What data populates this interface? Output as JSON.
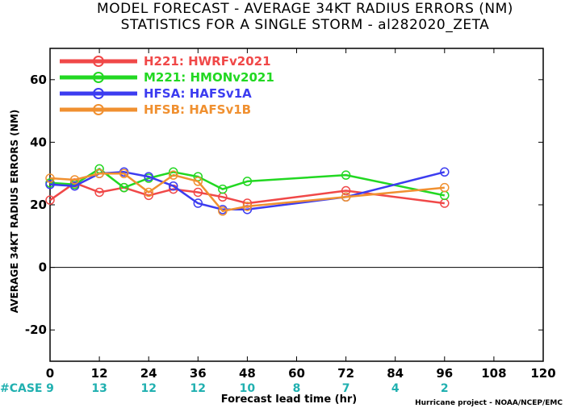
{
  "chart_data": {
    "type": "line",
    "title": "MODEL FORECAST - AVERAGE 34KT RADIUS ERRORS (NM)",
    "subtitle": "STATISTICS FOR A SINGLE STORM - al282020_ZETA",
    "xlabel": "Forecast lead time (hr)",
    "ylabel": "AVERAGE 34KT RADIUS ERRORS (NM)",
    "xlim": [
      0,
      120
    ],
    "ylim": [
      -30,
      70
    ],
    "xticks": [
      0,
      12,
      24,
      36,
      48,
      60,
      72,
      84,
      96,
      108,
      120
    ],
    "yticks": [
      -20,
      0,
      20,
      40,
      60
    ],
    "xtick_labels": [
      "0",
      "12",
      "24",
      "36",
      "48",
      "60",
      "72",
      "84",
      "96",
      "108",
      "120"
    ],
    "ytick_labels": [
      "-20",
      "0",
      "20",
      "40",
      "60"
    ],
    "zero_line": true,
    "grid": false,
    "legend_position": "top-left",
    "series": [
      {
        "name": "H221: HWRFv2021",
        "color": "#f04848",
        "x": [
          0,
          6,
          12,
          18,
          24,
          30,
          36,
          42,
          48,
          72,
          96
        ],
        "y": [
          21.5,
          27,
          24,
          25.5,
          23,
          25,
          24,
          22.5,
          20.5,
          24.5,
          20.5
        ]
      },
      {
        "name": "M221: HMONv2021",
        "color": "#22d822",
        "x": [
          0,
          6,
          12,
          18,
          24,
          30,
          36,
          42,
          48,
          72,
          96
        ],
        "y": [
          27,
          26.5,
          31.5,
          25.5,
          28.5,
          30.5,
          29,
          25,
          27.5,
          29.5,
          23
        ]
      },
      {
        "name": "HFSA: HAFSv1A",
        "color": "#3c3cf0",
        "x": [
          0,
          6,
          12,
          18,
          24,
          30,
          36,
          42,
          48,
          72,
          96
        ],
        "y": [
          26.5,
          26,
          30,
          30.5,
          29,
          26,
          20.5,
          18.5,
          18.5,
          22.5,
          30.5
        ]
      },
      {
        "name": "HFSB: HAFSv1B",
        "color": "#f09030",
        "x": [
          0,
          6,
          12,
          18,
          24,
          30,
          36,
          42,
          48,
          72,
          96
        ],
        "y": [
          28.5,
          28,
          30,
          30,
          24,
          29.5,
          27.5,
          18,
          19.5,
          22.5,
          25.5
        ]
      }
    ],
    "cases": {
      "label": "#CASE",
      "label_color": "#20b0b0",
      "x": [
        0,
        12,
        24,
        36,
        48,
        60,
        72,
        84,
        96
      ],
      "values": [
        "9",
        "13",
        "12",
        "12",
        "10",
        "8",
        "7",
        "4",
        "2"
      ]
    },
    "credit": "Hurricane project - NOAA/NCEP/EMC"
  }
}
